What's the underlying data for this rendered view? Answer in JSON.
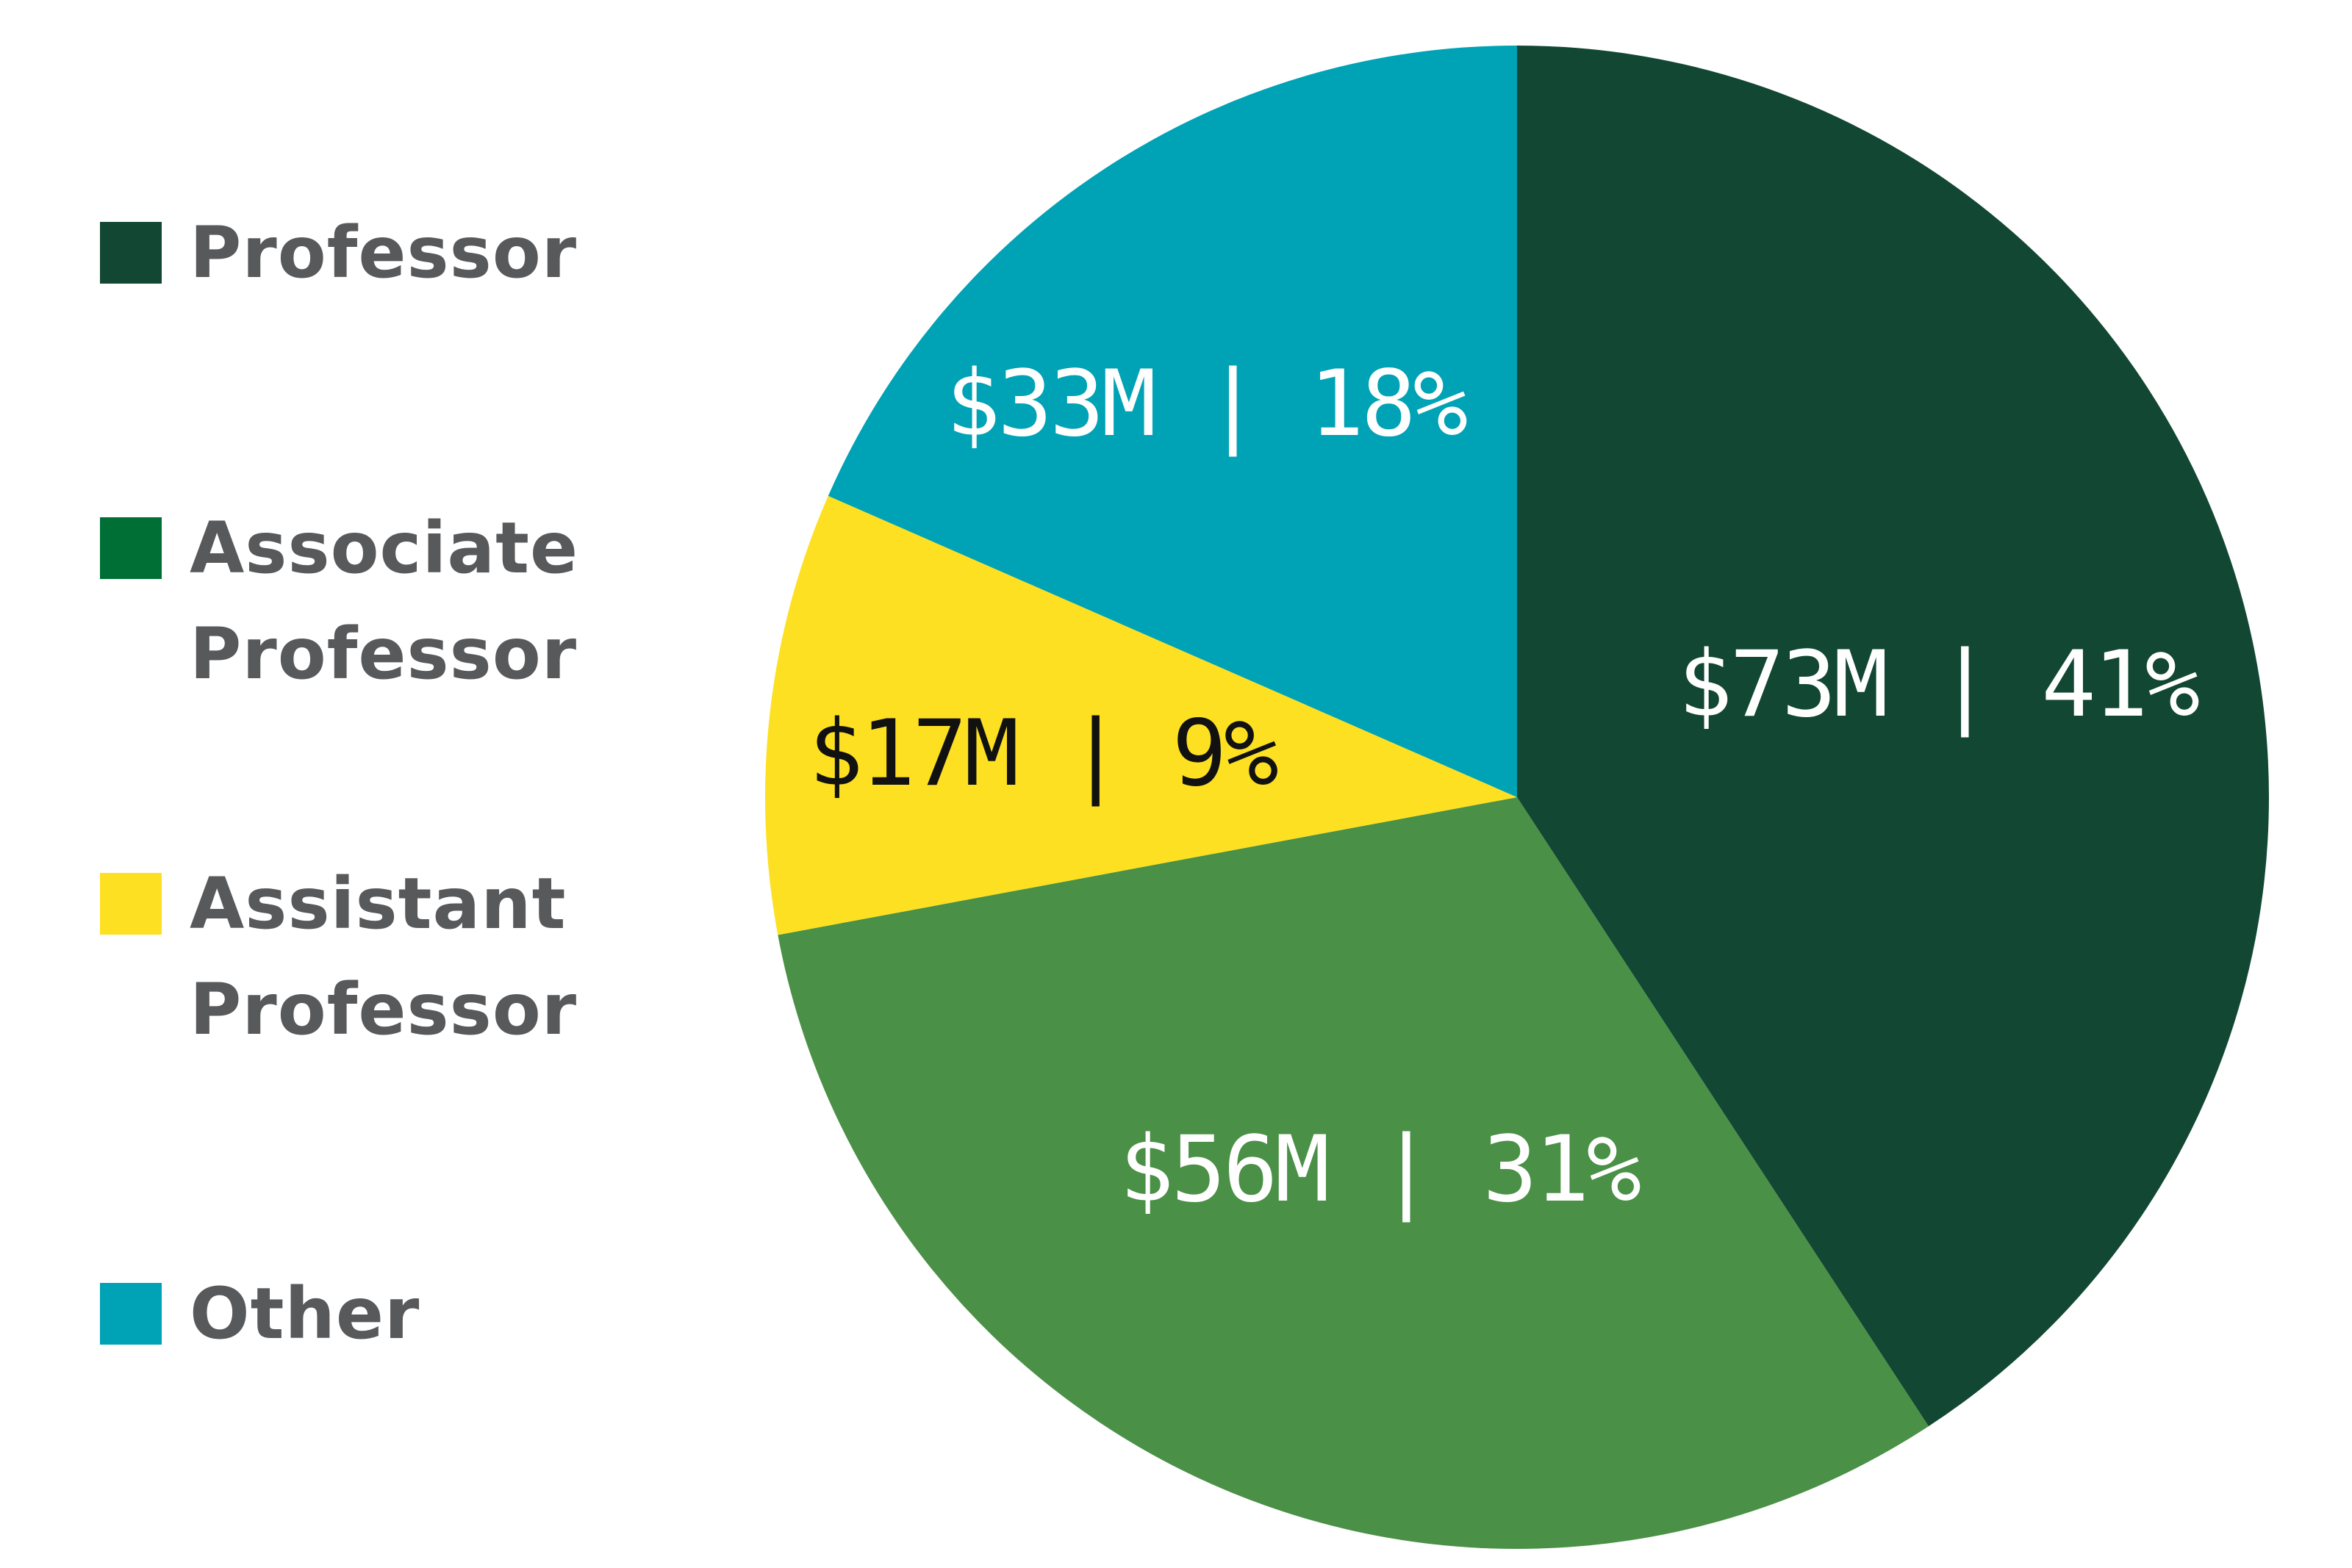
{
  "chart_data": {
    "type": "pie",
    "title": "",
    "slices": [
      {
        "name": "Professor",
        "value": 73,
        "percent": 41,
        "label": "$73M | 41%",
        "color": "#124734",
        "label_color": "#ffffff"
      },
      {
        "name": "Associate Professor",
        "value": 56,
        "percent": 31,
        "label": "$56M | 31%",
        "color": "#4a9046",
        "label_color": "#ffffff"
      },
      {
        "name": "Assistant Professor",
        "value": 17,
        "percent": 9,
        "label": "$17M | 9%",
        "color": "#fde021",
        "label_color": "#111111"
      },
      {
        "name": "Other",
        "value": 33,
        "percent": 18,
        "label": "$33M | 18%",
        "color": "#00a3b5",
        "label_color": "#ffffff"
      }
    ],
    "legend": {
      "placement": "left",
      "entries": [
        {
          "label": "Professor",
          "color": "#124734"
        },
        {
          "label": "Associate\nProfessor",
          "color": "#006f35"
        },
        {
          "label": "Assistant\nProfessor",
          "color": "#fde021"
        },
        {
          "label": "Other",
          "color": "#00a3b5"
        }
      ]
    }
  }
}
